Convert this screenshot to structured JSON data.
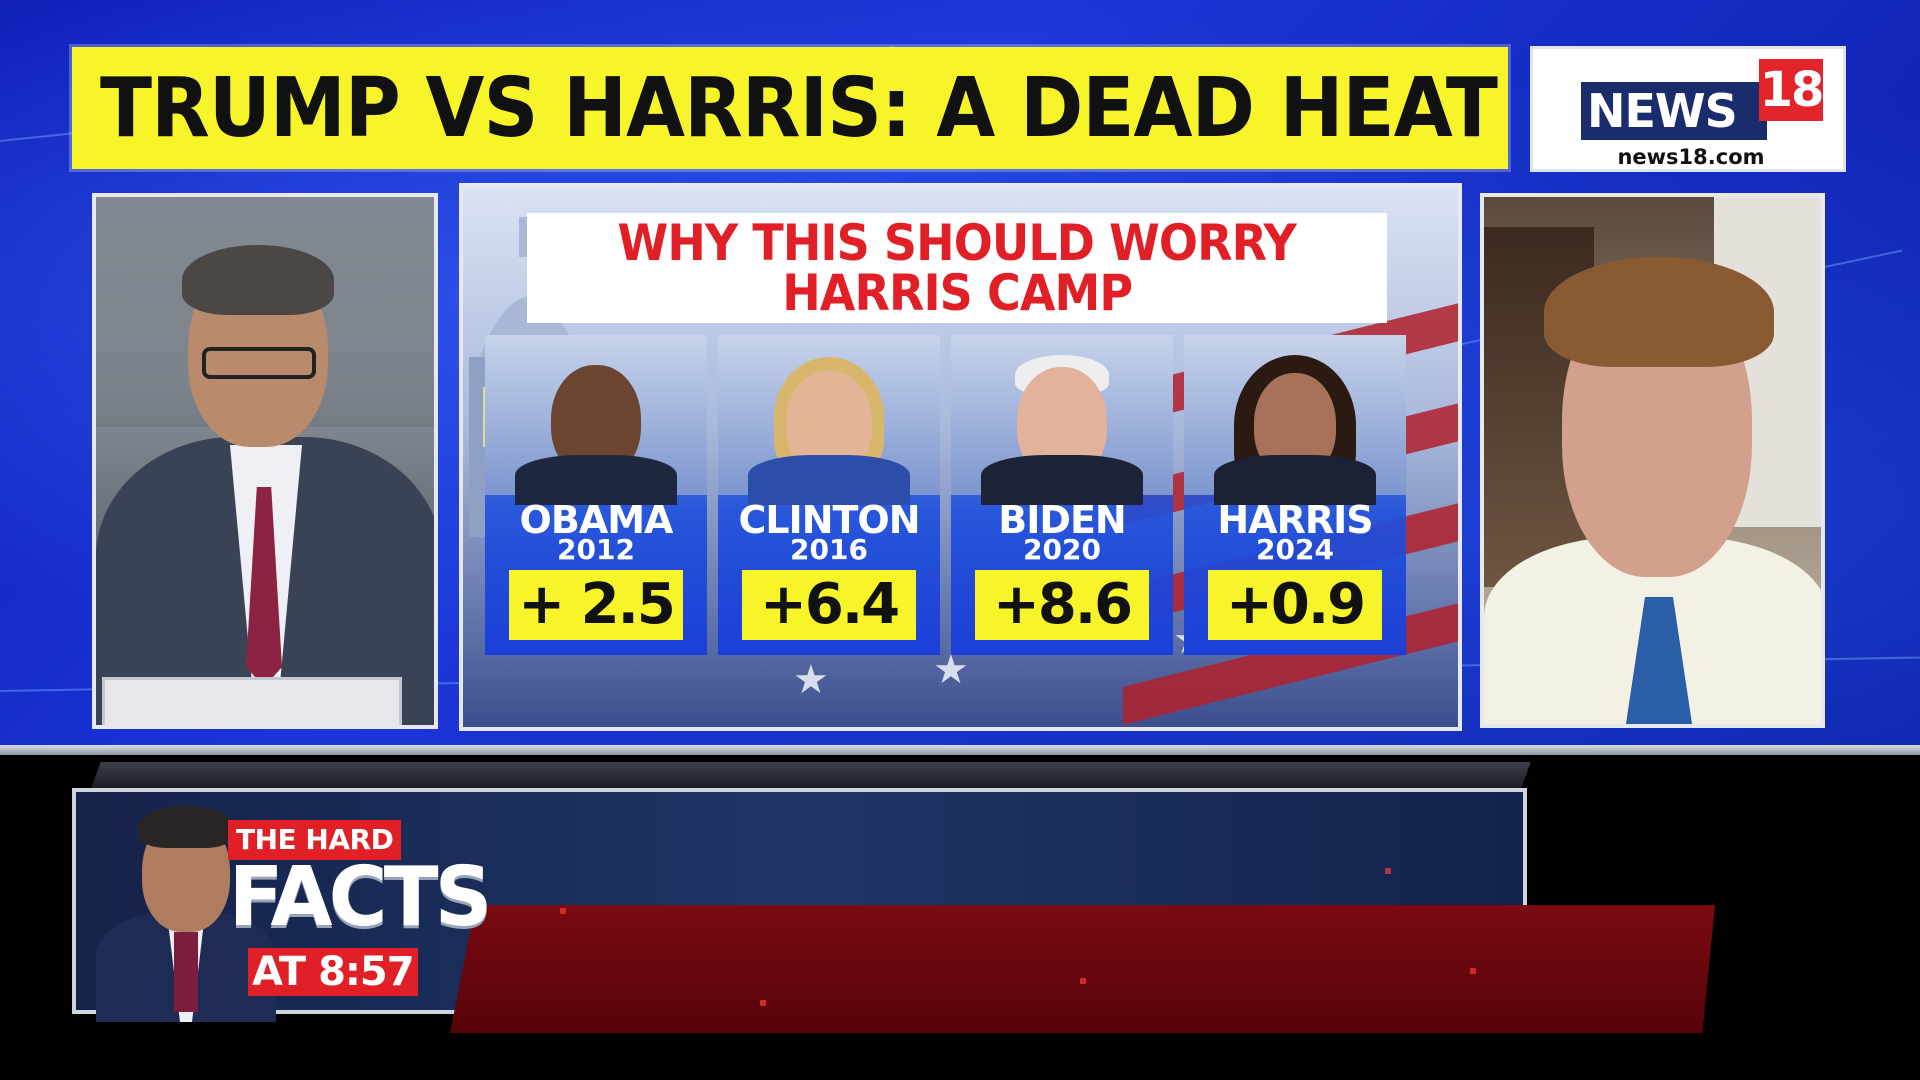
{
  "headline": {
    "text": "TRUMP VS HARRIS: A DEAD HEAT"
  },
  "logo": {
    "name": "NEWS",
    "number": "18",
    "url": "news18.com"
  },
  "graphic": {
    "title_line1": "WHY THIS SHOULD WORRY",
    "title_line2": "HARRIS CAMP",
    "cards": [
      {
        "name": "OBAMA",
        "year": "2012",
        "value": "+ 2.5"
      },
      {
        "name": "CLINTON",
        "year": "2016",
        "value": "+6.4"
      },
      {
        "name": "BIDEN",
        "year": "2020",
        "value": "+8.6"
      },
      {
        "name": "HARRIS",
        "year": "2024",
        "value": "+0.9"
      }
    ]
  },
  "promo": {
    "label_top": "THE HARD",
    "label_main": "FACTS",
    "label_time": "AT 8:57"
  },
  "colors": {
    "headline_bg": "#f7f52a",
    "title_red": "#e01f26",
    "card_blue": "#1c3fd8",
    "value_yellow": "#f7f52a",
    "studio_blue": "#1b35d8"
  }
}
